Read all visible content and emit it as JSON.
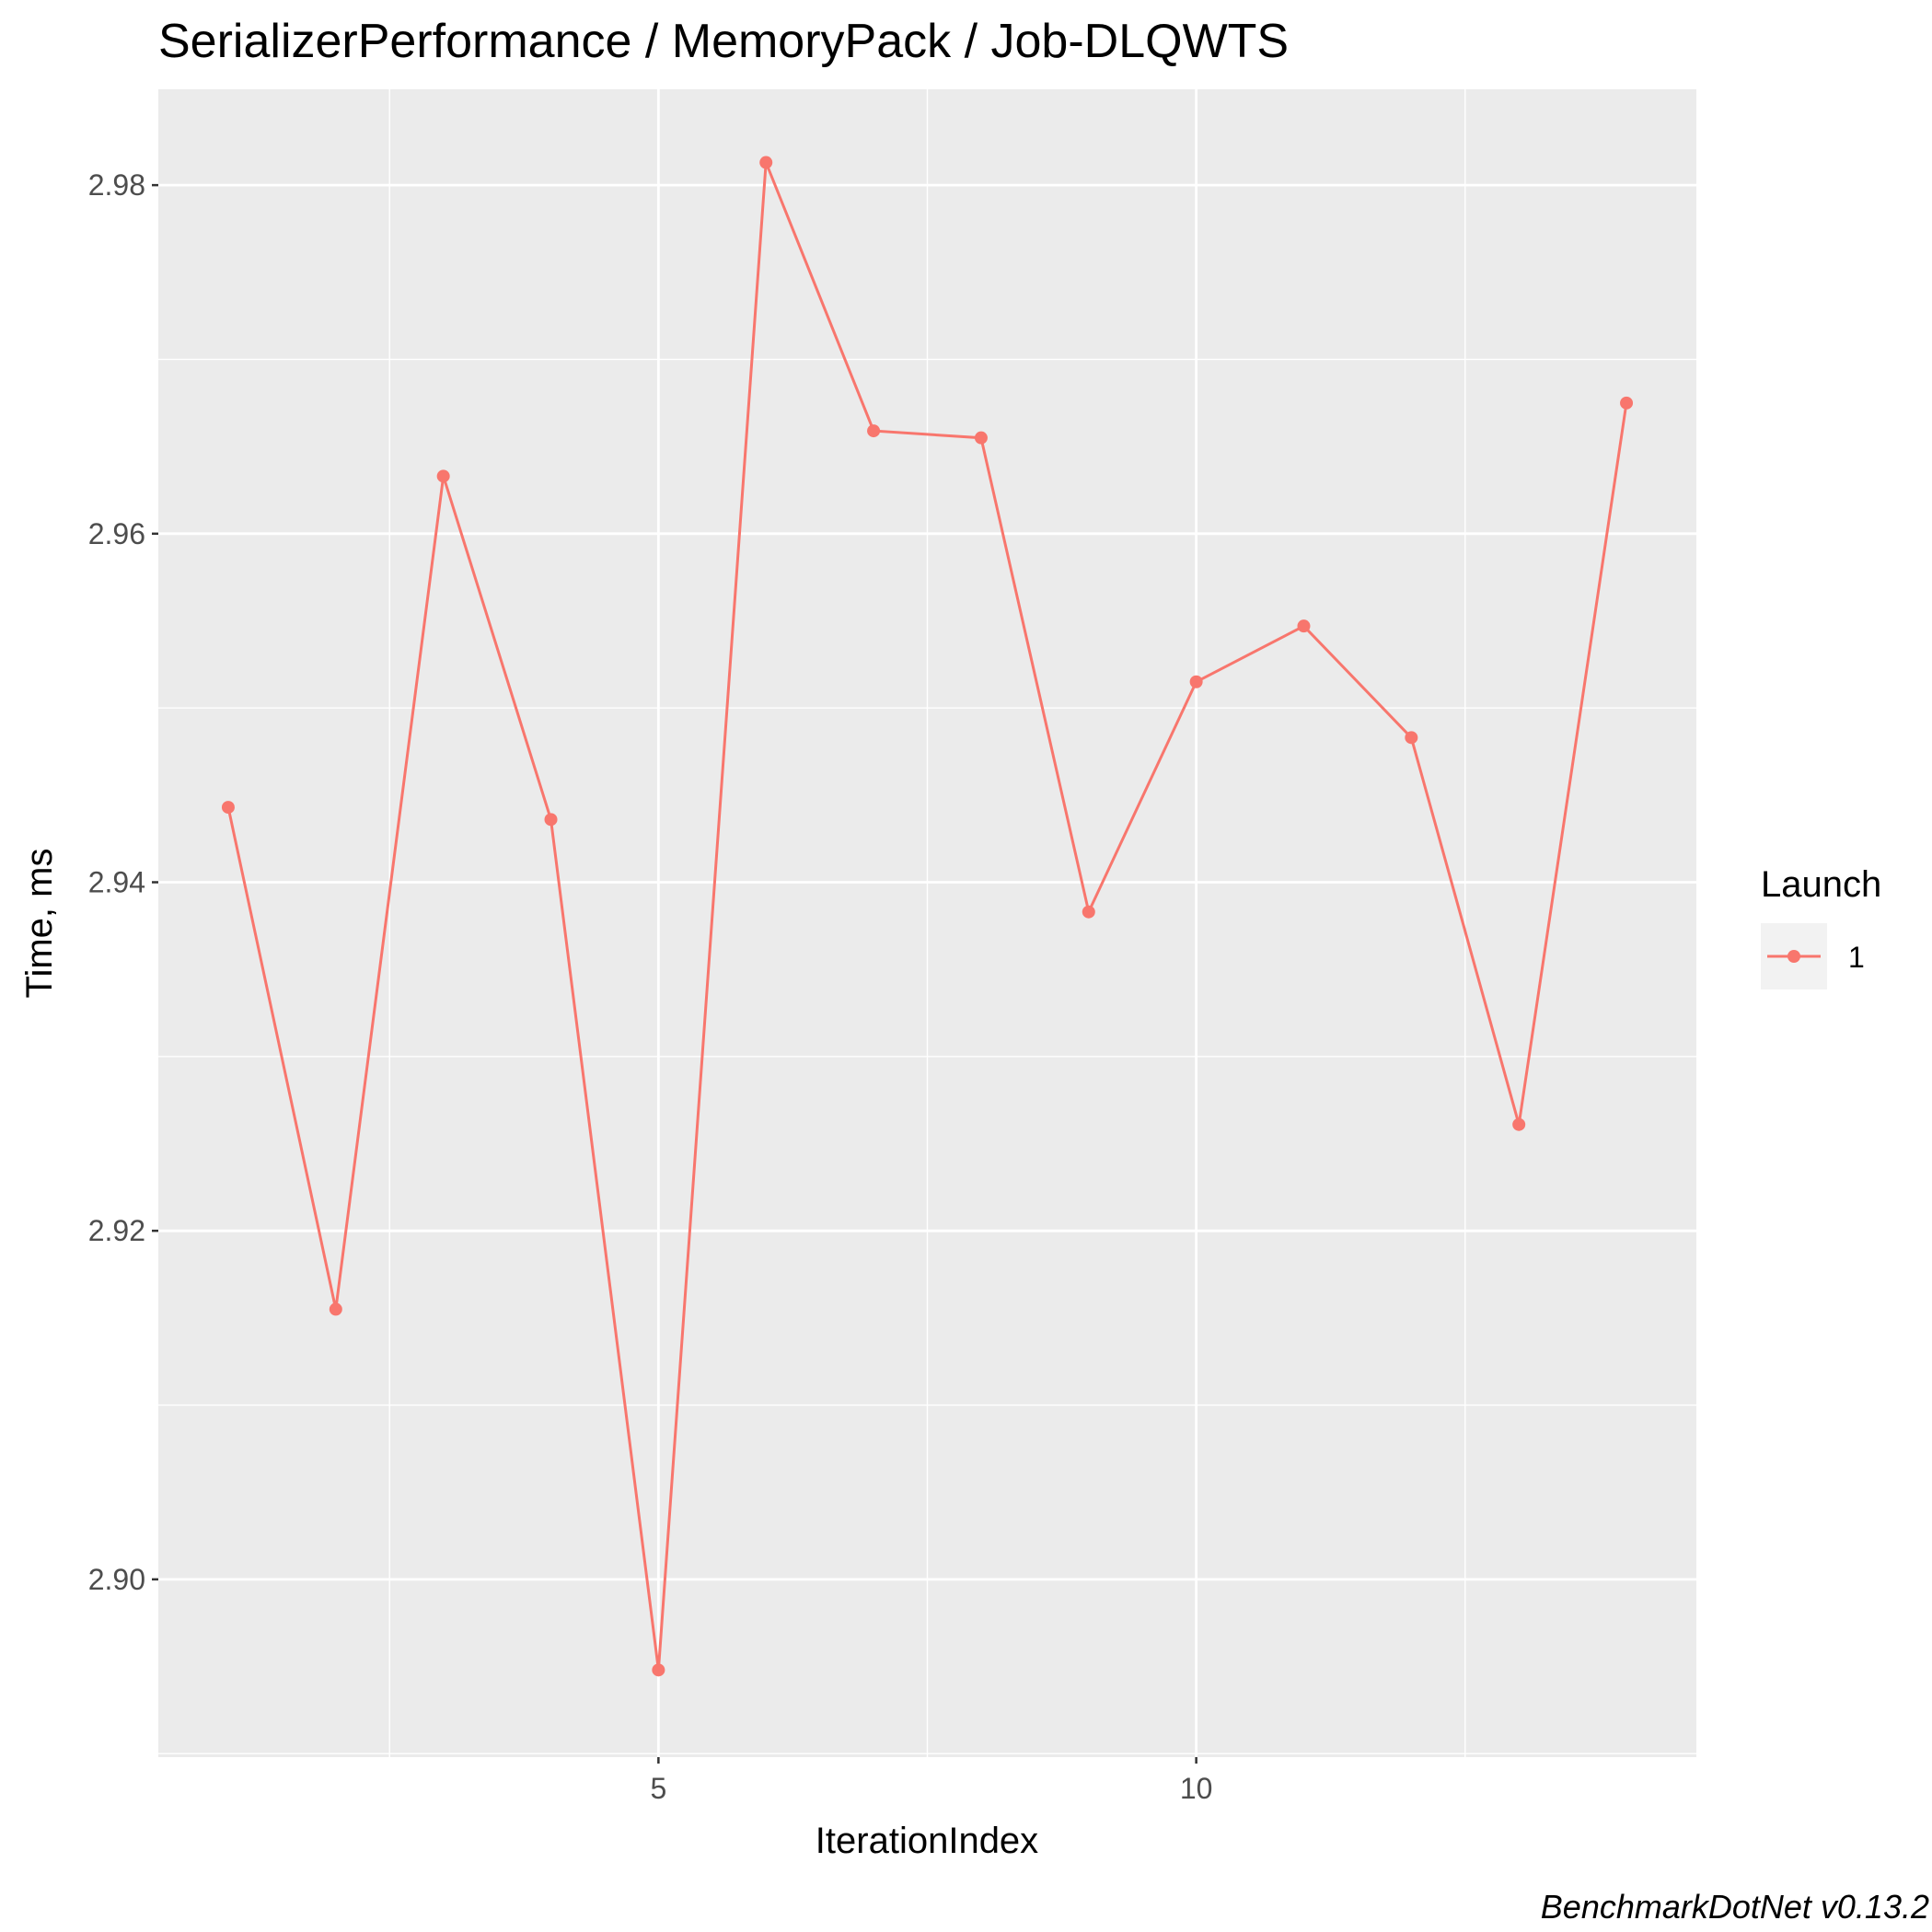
{
  "chart_data": {
    "type": "line",
    "title": "SerializerPerformance / MemoryPack / Job-DLQWTS",
    "xlabel": "IterationIndex",
    "ylabel": "Time, ms",
    "caption": "BenchmarkDotNet v0.13.2",
    "xlim": [
      0.35,
      14.65
    ],
    "ylim": [
      2.8898,
      2.9855
    ],
    "x_ticks": [
      5,
      10
    ],
    "x_tick_labels": [
      "5",
      "10"
    ],
    "y_ticks": [
      2.9,
      2.92,
      2.94,
      2.96,
      2.98
    ],
    "y_tick_labels": [
      "2.90",
      "2.92",
      "2.94",
      "2.96",
      "2.98"
    ],
    "grid": true,
    "legend": {
      "title": "Launch",
      "position": "right"
    },
    "series": [
      {
        "name": "1",
        "color": "#f8766d",
        "x": [
          1,
          2,
          3,
          4,
          5,
          6,
          7,
          8,
          9,
          10,
          11,
          12,
          13,
          14
        ],
        "y": [
          2.9443,
          2.9155,
          2.9633,
          2.9436,
          2.8948,
          2.9813,
          2.9659,
          2.9655,
          2.9383,
          2.9515,
          2.9547,
          2.9483,
          2.9261,
          2.9675
        ]
      }
    ]
  }
}
